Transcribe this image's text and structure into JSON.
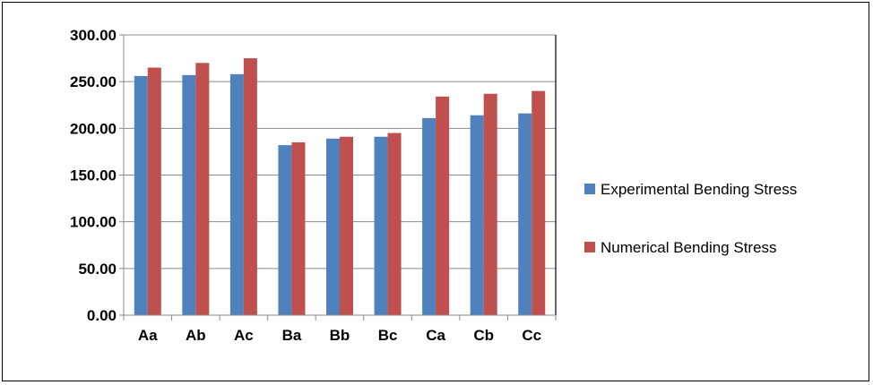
{
  "chart_data": {
    "type": "bar",
    "title": "",
    "xlabel": "",
    "ylabel": "",
    "categories": [
      "Aa",
      "Ab",
      "Ac",
      "Ba",
      "Bb",
      "Bc",
      "Ca",
      "Cb",
      "Cc"
    ],
    "series": [
      {
        "name": "Experimental Bending Stress",
        "color": "#4F81BD",
        "values": [
          256,
          257,
          258,
          182,
          189,
          191,
          211,
          214,
          216
        ]
      },
      {
        "name": "Numerical Bending Stress",
        "color": "#C0504D",
        "values": [
          265,
          270,
          275,
          185,
          191,
          195,
          234,
          237,
          240
        ]
      }
    ],
    "ylim": [
      0,
      300
    ],
    "yticks": [
      "0.00",
      "50.00",
      "100.00",
      "150.00",
      "200.00",
      "250.00",
      "300.00"
    ],
    "grid": true,
    "legend_position": "right"
  }
}
